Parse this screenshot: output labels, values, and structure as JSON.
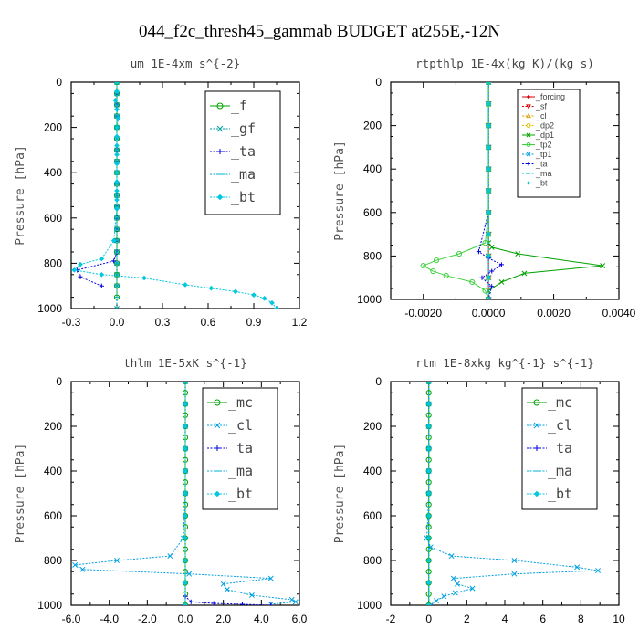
{
  "figure_title": "044_f2c_thresh45_gammab  BUDGET at255E,-12N",
  "chart_data": [
    {
      "type": "line",
      "title": "um  1E-4xm s^{-2}",
      "ylabel": "Pressure [hPa]",
      "xlim": [
        -0.3,
        1.2
      ],
      "ylim": [
        0,
        1000
      ],
      "xticks": [
        "-0.3",
        "0.0",
        "0.3",
        "0.6",
        "0.9",
        "1.2"
      ],
      "xtick_values": [
        -0.3,
        0.0,
        0.3,
        0.6,
        0.9,
        1.2
      ],
      "yticks": [
        "0",
        "200",
        "400",
        "600",
        "800",
        "1000"
      ],
      "ytick_values": [
        0,
        200,
        400,
        600,
        800,
        1000
      ],
      "legend_size": "large",
      "series": [
        {
          "name": "_f",
          "color": "#00a000",
          "marker": "o",
          "dashed": false,
          "x": [
            0,
            0,
            0,
            0,
            0,
            0,
            0,
            0,
            0,
            0,
            0,
            0,
            0,
            0,
            0,
            0,
            0,
            0,
            0,
            0
          ],
          "y": [
            0,
            50,
            100,
            150,
            200,
            250,
            300,
            350,
            400,
            450,
            500,
            550,
            600,
            650,
            700,
            750,
            800,
            850,
            900,
            950
          ]
        },
        {
          "name": "_gf",
          "color": "#00a0a0",
          "marker": "x",
          "dashed": true,
          "x": [
            0,
            0,
            0,
            0,
            0,
            0,
            0,
            0,
            0,
            0,
            0,
            0,
            0,
            0,
            0,
            0,
            0,
            0,
            0,
            0
          ],
          "y": [
            0,
            50,
            100,
            150,
            200,
            250,
            300,
            350,
            400,
            450,
            500,
            550,
            600,
            650,
            700,
            750,
            800,
            850,
            900,
            1000
          ]
        },
        {
          "name": "_ta",
          "color": "#0000e0",
          "marker": "+",
          "dashed": true,
          "x": [
            0.0,
            0.0,
            0.0,
            0.0,
            0.0,
            0.0,
            0.0,
            0.0,
            0.0,
            0.0,
            0.0,
            0.0,
            0.0,
            0.0,
            0.0,
            0.0,
            -0.02,
            -0.26,
            -0.24,
            -0.1
          ],
          "y": [
            0,
            50,
            100,
            150,
            200,
            250,
            300,
            350,
            400,
            450,
            500,
            550,
            600,
            650,
            700,
            750,
            790,
            830,
            860,
            900
          ]
        },
        {
          "name": "_ma",
          "color": "#00b0d0",
          "marker": "-",
          "dashed": true,
          "x": [
            0,
            0,
            0,
            0,
            0,
            0,
            0,
            0,
            0,
            0,
            0,
            0,
            0,
            0,
            0,
            0,
            0,
            0,
            0,
            0
          ],
          "y": [
            0,
            50,
            100,
            150,
            200,
            250,
            300,
            350,
            400,
            450,
            500,
            550,
            600,
            650,
            700,
            750,
            800,
            850,
            900,
            950
          ]
        },
        {
          "name": "_bt",
          "color": "#00c8e0",
          "marker": "◆",
          "dashed": true,
          "x": [
            0.0,
            0.0,
            -0.01,
            0.0,
            0.01,
            0.0,
            0.0,
            0.0,
            0.0,
            0.0,
            0.0,
            0.0,
            0.0,
            0.0,
            0.0,
            -0.02,
            -0.1,
            -0.24,
            -0.28,
            -0.1,
            0.18,
            0.45,
            0.62,
            0.78,
            0.9,
            0.97,
            1.02,
            1.05
          ],
          "y": [
            0,
            40,
            80,
            120,
            160,
            200,
            240,
            280,
            320,
            360,
            400,
            440,
            480,
            520,
            560,
            700,
            780,
            805,
            830,
            850,
            865,
            895,
            910,
            925,
            940,
            955,
            975,
            1000
          ]
        }
      ]
    },
    {
      "type": "line",
      "title": "rtpthlp  1E-4x(kg K)/(kg s)",
      "ylabel": "Pressure [hPa]",
      "xlim": [
        -0.003,
        0.004
      ],
      "ylim": [
        0,
        1000
      ],
      "xticks": [
        "-0.0020",
        "0.0000",
        "0.0020",
        "0.0040"
      ],
      "xtick_values": [
        -0.002,
        0.0,
        0.002,
        0.004
      ],
      "yticks": [
        "0",
        "200",
        "400",
        "600",
        "800",
        "1000"
      ],
      "ytick_values": [
        0,
        200,
        400,
        600,
        800,
        1000
      ],
      "legend_size": "small",
      "series": [
        {
          "name": "_forcing",
          "color": "#e00000",
          "marker": "◆",
          "dashed": false,
          "x": [
            0,
            0,
            0,
            0,
            0,
            0,
            0,
            0,
            0,
            0,
            0
          ],
          "y": [
            0,
            100,
            200,
            300,
            400,
            500,
            600,
            700,
            800,
            900,
            1000
          ]
        },
        {
          "name": "_sf",
          "color": "#e00000",
          "marker": "▽",
          "dashed": true,
          "x": [
            0,
            0,
            0,
            0,
            0,
            0,
            0,
            0,
            0,
            0,
            0
          ],
          "y": [
            0,
            100,
            200,
            300,
            400,
            500,
            600,
            700,
            800,
            900,
            1000
          ]
        },
        {
          "name": "_cl",
          "color": "#e0a000",
          "marker": "△",
          "dashed": true,
          "x": [
            0,
            0,
            0,
            0,
            0,
            0,
            0,
            0,
            0,
            0,
            0
          ],
          "y": [
            0,
            100,
            200,
            300,
            400,
            500,
            600,
            700,
            800,
            900,
            1000
          ]
        },
        {
          "name": "_dp2",
          "color": "#e0c000",
          "marker": "o",
          "dashed": true,
          "x": [
            0,
            0,
            0,
            0,
            0,
            0,
            0,
            0,
            0,
            0,
            0
          ],
          "y": [
            0,
            100,
            200,
            300,
            400,
            500,
            600,
            700,
            800,
            900,
            1000
          ]
        },
        {
          "name": "_dp1",
          "color": "#00a000",
          "marker": "x",
          "dashed": false,
          "x": [
            0.0,
            0.0,
            0.0,
            0.0,
            0.0,
            0.0,
            0.0,
            0.0,
            0.0,
            0.0001,
            0.0009,
            0.0035,
            0.0011,
            0.0004,
            0.0,
            0.0
          ],
          "y": [
            0,
            100,
            200,
            300,
            400,
            500,
            600,
            700,
            740,
            760,
            790,
            845,
            880,
            920,
            960,
            1000
          ]
        },
        {
          "name": "_tp2",
          "color": "#40d040",
          "marker": "o",
          "dashed": false,
          "x": [
            0.0,
            0.0,
            0.0,
            0.0,
            0.0,
            0.0,
            0.0,
            -0.0001,
            -0.0009,
            -0.0016,
            -0.002,
            -0.0017,
            -0.0013,
            -0.0005,
            -0.0001,
            0.0
          ],
          "y": [
            0,
            100,
            200,
            300,
            400,
            500,
            600,
            740,
            790,
            820,
            845,
            870,
            890,
            920,
            960,
            1000
          ]
        },
        {
          "name": "_tp1",
          "color": "#00a0e0",
          "marker": "x",
          "dashed": true,
          "x": [
            0,
            0,
            0,
            0,
            0,
            0,
            0,
            0,
            0,
            0,
            0
          ],
          "y": [
            0,
            100,
            200,
            300,
            400,
            500,
            600,
            700,
            800,
            900,
            1000
          ]
        },
        {
          "name": "_ta",
          "color": "#0000e0",
          "marker": "+",
          "dashed": true,
          "x": [
            0.0,
            0.0,
            0.0,
            0.0,
            -0.0003,
            0.0,
            0.0004,
            0.0001,
            -0.0002,
            0.0001,
            0.0
          ],
          "y": [
            0,
            200,
            400,
            600,
            780,
            810,
            840,
            870,
            900,
            940,
            1000
          ]
        },
        {
          "name": "_ma",
          "color": "#00b0d0",
          "marker": "-",
          "dashed": true,
          "x": [
            0,
            0,
            0,
            0,
            0,
            0,
            0,
            0,
            0,
            0,
            0
          ],
          "y": [
            0,
            100,
            200,
            300,
            400,
            500,
            600,
            700,
            800,
            900,
            1000
          ]
        },
        {
          "name": "_bt",
          "color": "#00c8e0",
          "marker": "◆",
          "dashed": true,
          "x": [
            0,
            0,
            0,
            0,
            0,
            0,
            0,
            0,
            0,
            0,
            0
          ],
          "y": [
            0,
            100,
            200,
            300,
            400,
            500,
            600,
            700,
            800,
            900,
            1000
          ]
        }
      ]
    },
    {
      "type": "line",
      "title": "thlm  1E-5xK s^{-1}",
      "ylabel": "Pressure [hPa]",
      "xlim": [
        -6.0,
        6.0
      ],
      "ylim": [
        0,
        1000
      ],
      "xticks": [
        "-6.0",
        "-4.0",
        "-2.0",
        "0.0",
        "2.0",
        "4.0",
        "6.0"
      ],
      "xtick_values": [
        -6,
        -4,
        -2,
        0,
        2,
        4,
        6
      ],
      "yticks": [
        "0",
        "200",
        "400",
        "600",
        "800",
        "1000"
      ],
      "ytick_values": [
        0,
        200,
        400,
        600,
        800,
        1000
      ],
      "legend_size": "large",
      "series": [
        {
          "name": "_mc",
          "color": "#00a000",
          "marker": "o",
          "dashed": false,
          "x": [
            0,
            0,
            0,
            0,
            0,
            0,
            0,
            0,
            0,
            0,
            0,
            0,
            0,
            0,
            0,
            0,
            0,
            0,
            0,
            0,
            0
          ],
          "y": [
            0,
            50,
            100,
            150,
            200,
            250,
            300,
            350,
            400,
            450,
            500,
            550,
            600,
            650,
            700,
            750,
            800,
            850,
            900,
            950,
            1000
          ]
        },
        {
          "name": "_cl",
          "color": "#00a0e0",
          "marker": "x",
          "dashed": true,
          "x": [
            0.0,
            0.0,
            0.0,
            0.0,
            0.0,
            0.0,
            -0.1,
            -0.8,
            -3.6,
            -5.8,
            -5.4,
            0.2,
            4.5,
            2.0,
            2.2,
            3.5,
            5.6,
            5.8,
            4.5
          ],
          "y": [
            0,
            100,
            200,
            300,
            400,
            500,
            700,
            780,
            800,
            820,
            840,
            860,
            880,
            905,
            930,
            955,
            975,
            985,
            995
          ]
        },
        {
          "name": "_ta",
          "color": "#0000e0",
          "marker": "+",
          "dashed": true,
          "x": [
            0.0,
            0.0,
            0.0,
            0.0,
            0.0,
            0.0,
            0.0,
            0.3,
            1.5,
            3.0,
            4.5
          ],
          "y": [
            0,
            200,
            400,
            600,
            800,
            900,
            960,
            985,
            992,
            996,
            1000
          ]
        },
        {
          "name": "_ma",
          "color": "#00b0d0",
          "marker": "-",
          "dashed": true,
          "x": [
            0,
            0,
            0,
            0,
            0,
            0,
            0,
            0,
            0,
            0,
            0
          ],
          "y": [
            0,
            100,
            200,
            300,
            400,
            500,
            600,
            700,
            800,
            900,
            1000
          ]
        },
        {
          "name": "_bt",
          "color": "#00c8e0",
          "marker": "◆",
          "dashed": true,
          "x": [
            0.0,
            0.0,
            0.0,
            0.0,
            0.0,
            0.0,
            0.0,
            0.0,
            0.0,
            0.0,
            0.0
          ],
          "y": [
            0,
            100,
            200,
            300,
            400,
            500,
            600,
            700,
            800,
            900,
            1000
          ]
        }
      ]
    },
    {
      "type": "line",
      "title": "rtm  1E-8xkg kg^{-1} s^{-1}",
      "ylabel": "Pressure [hPa]",
      "xlim": [
        -2,
        10
      ],
      "ylim": [
        0,
        1000
      ],
      "xticks": [
        "-2",
        "0",
        "2",
        "4",
        "6",
        "8",
        "10"
      ],
      "xtick_values": [
        -2,
        0,
        2,
        4,
        6,
        8,
        10
      ],
      "yticks": [
        "0",
        "200",
        "400",
        "600",
        "800",
        "1000"
      ],
      "ytick_values": [
        0,
        200,
        400,
        600,
        800,
        1000
      ],
      "legend_size": "large",
      "series": [
        {
          "name": "_mc",
          "color": "#00a000",
          "marker": "o",
          "dashed": false,
          "x": [
            0,
            0,
            0,
            0,
            0,
            0,
            0,
            0,
            0,
            0,
            0,
            0,
            0,
            0,
            0,
            0,
            0,
            0,
            0,
            0,
            0
          ],
          "y": [
            0,
            50,
            100,
            150,
            200,
            250,
            300,
            350,
            400,
            450,
            500,
            550,
            600,
            650,
            700,
            750,
            800,
            850,
            900,
            950,
            1000
          ]
        },
        {
          "name": "_cl",
          "color": "#00a0e0",
          "marker": "x",
          "dashed": true,
          "x": [
            0.0,
            0.0,
            0.0,
            0.0,
            0.0,
            0.0,
            -0.1,
            0.1,
            1.2,
            4.5,
            7.8,
            8.9,
            4.5,
            1.3,
            1.5,
            2.3,
            1.4,
            0.8,
            0.4,
            0.1
          ],
          "y": [
            0,
            100,
            200,
            300,
            400,
            500,
            700,
            740,
            780,
            800,
            830,
            845,
            860,
            880,
            905,
            925,
            945,
            960,
            980,
            1000
          ]
        },
        {
          "name": "_ta",
          "color": "#0000e0",
          "marker": "+",
          "dashed": true,
          "x": [
            0,
            0,
            0,
            0,
            0,
            0,
            0,
            0,
            0,
            0,
            0
          ],
          "y": [
            0,
            100,
            200,
            300,
            400,
            500,
            600,
            700,
            800,
            900,
            1000
          ]
        },
        {
          "name": "_ma",
          "color": "#00b0d0",
          "marker": "-",
          "dashed": true,
          "x": [
            0,
            0,
            0,
            0,
            0,
            0,
            0,
            0,
            0,
            0,
            0
          ],
          "y": [
            0,
            100,
            200,
            300,
            400,
            500,
            600,
            700,
            800,
            900,
            1000
          ]
        },
        {
          "name": "_bt",
          "color": "#00c8e0",
          "marker": "◆",
          "dashed": true,
          "x": [
            0,
            0,
            0,
            0,
            0,
            0,
            0,
            0,
            0,
            0,
            0
          ],
          "y": [
            0,
            100,
            200,
            300,
            400,
            500,
            600,
            700,
            800,
            900,
            1000
          ]
        }
      ]
    }
  ]
}
